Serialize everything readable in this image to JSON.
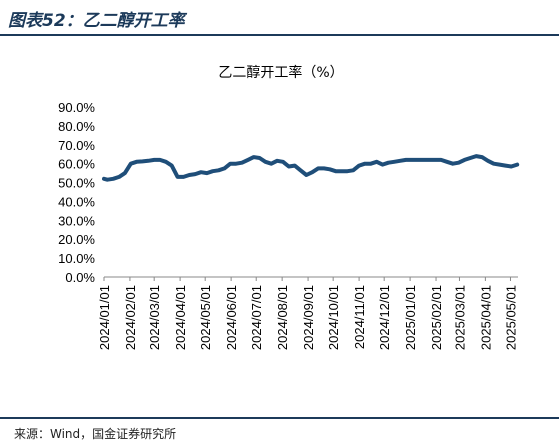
{
  "figure": {
    "title": "图表52：乙二醇开工率",
    "source": "来源：Wind，国金证券研究所"
  },
  "colors": {
    "line": "#1f4e79",
    "title": "#1c3a5a",
    "rule": "#1c3a5a"
  },
  "chart_data": {
    "type": "line",
    "title": "乙二醇开工率（%）",
    "xlabel": "",
    "ylabel": "",
    "y_ticks": [
      "0.0%",
      "10.0%",
      "20.0%",
      "30.0%",
      "40.0%",
      "50.0%",
      "60.0%",
      "70.0%",
      "80.0%",
      "90.0%"
    ],
    "ylim": [
      0,
      90
    ],
    "x_ticks": [
      "2024/01/01",
      "2024/02/01",
      "2024/03/01",
      "2024/04/01",
      "2024/05/01",
      "2024/06/01",
      "2024/07/01",
      "2024/08/01",
      "2024/09/01",
      "2024/10/01",
      "2024/11/01",
      "2024/12/01",
      "2025/01/01",
      "2025/02/01",
      "2025/03/01",
      "2025/04/01",
      "2025/05/01"
    ],
    "xlim": [
      "2024/01/01",
      "2025/05/10"
    ],
    "grid": false,
    "legend": "none",
    "series": [
      {
        "x": [
          "2024/01/01",
          "2024/01/05",
          "2024/01/12",
          "2024/01/19",
          "2024/01/26",
          "2024/02/02",
          "2024/02/09",
          "2024/02/16",
          "2024/02/23",
          "2024/03/01",
          "2024/03/08",
          "2024/03/15",
          "2024/03/22",
          "2024/03/29",
          "2024/04/05",
          "2024/04/12",
          "2024/04/19",
          "2024/04/26",
          "2024/05/03",
          "2024/05/10",
          "2024/05/17",
          "2024/05/24",
          "2024/05/31",
          "2024/06/07",
          "2024/06/14",
          "2024/06/21",
          "2024/06/28",
          "2024/07/05",
          "2024/07/12",
          "2024/07/19",
          "2024/07/26",
          "2024/08/02",
          "2024/08/09",
          "2024/08/16",
          "2024/08/23",
          "2024/08/30",
          "2024/09/06",
          "2024/09/13",
          "2024/09/20",
          "2024/09/27",
          "2024/10/04",
          "2024/10/11",
          "2024/10/18",
          "2024/10/25",
          "2024/11/01",
          "2024/11/08",
          "2024/11/15",
          "2024/11/22",
          "2024/11/29",
          "2024/12/06",
          "2024/12/13",
          "2024/12/20",
          "2024/12/27",
          "2025/01/03",
          "2025/01/10",
          "2025/01/17",
          "2025/01/24",
          "2025/01/31",
          "2025/02/07",
          "2025/02/14",
          "2025/02/21",
          "2025/02/28",
          "2025/03/07",
          "2025/03/14",
          "2025/03/21",
          "2025/03/28",
          "2025/04/04",
          "2025/04/11",
          "2025/04/18",
          "2025/04/25",
          "2025/05/02",
          "2025/05/09"
        ],
        "values": [
          52.0,
          51.5,
          52.0,
          53.0,
          55.0,
          60.0,
          61.0,
          61.2,
          61.5,
          62.0,
          62.0,
          61.0,
          59.0,
          53.0,
          53.0,
          54.0,
          54.5,
          55.5,
          55.0,
          56.0,
          56.5,
          57.5,
          60.0,
          60.0,
          60.5,
          62.0,
          63.5,
          63.0,
          61.0,
          60.0,
          61.5,
          61.0,
          58.5,
          59.0,
          56.5,
          54.0,
          55.5,
          57.5,
          57.5,
          57.0,
          56.0,
          56.0,
          56.0,
          56.5,
          59.0,
          60.0,
          60.0,
          61.0,
          59.5,
          60.5,
          61.0,
          61.5,
          62.0,
          62.0,
          62.0,
          62.0,
          62.0,
          62.0,
          62.0,
          61.0,
          60.0,
          60.5,
          62.0,
          63.0,
          64.0,
          63.5,
          61.5,
          60.0,
          59.5,
          59.0,
          58.5,
          59.5
        ]
      }
    ]
  }
}
